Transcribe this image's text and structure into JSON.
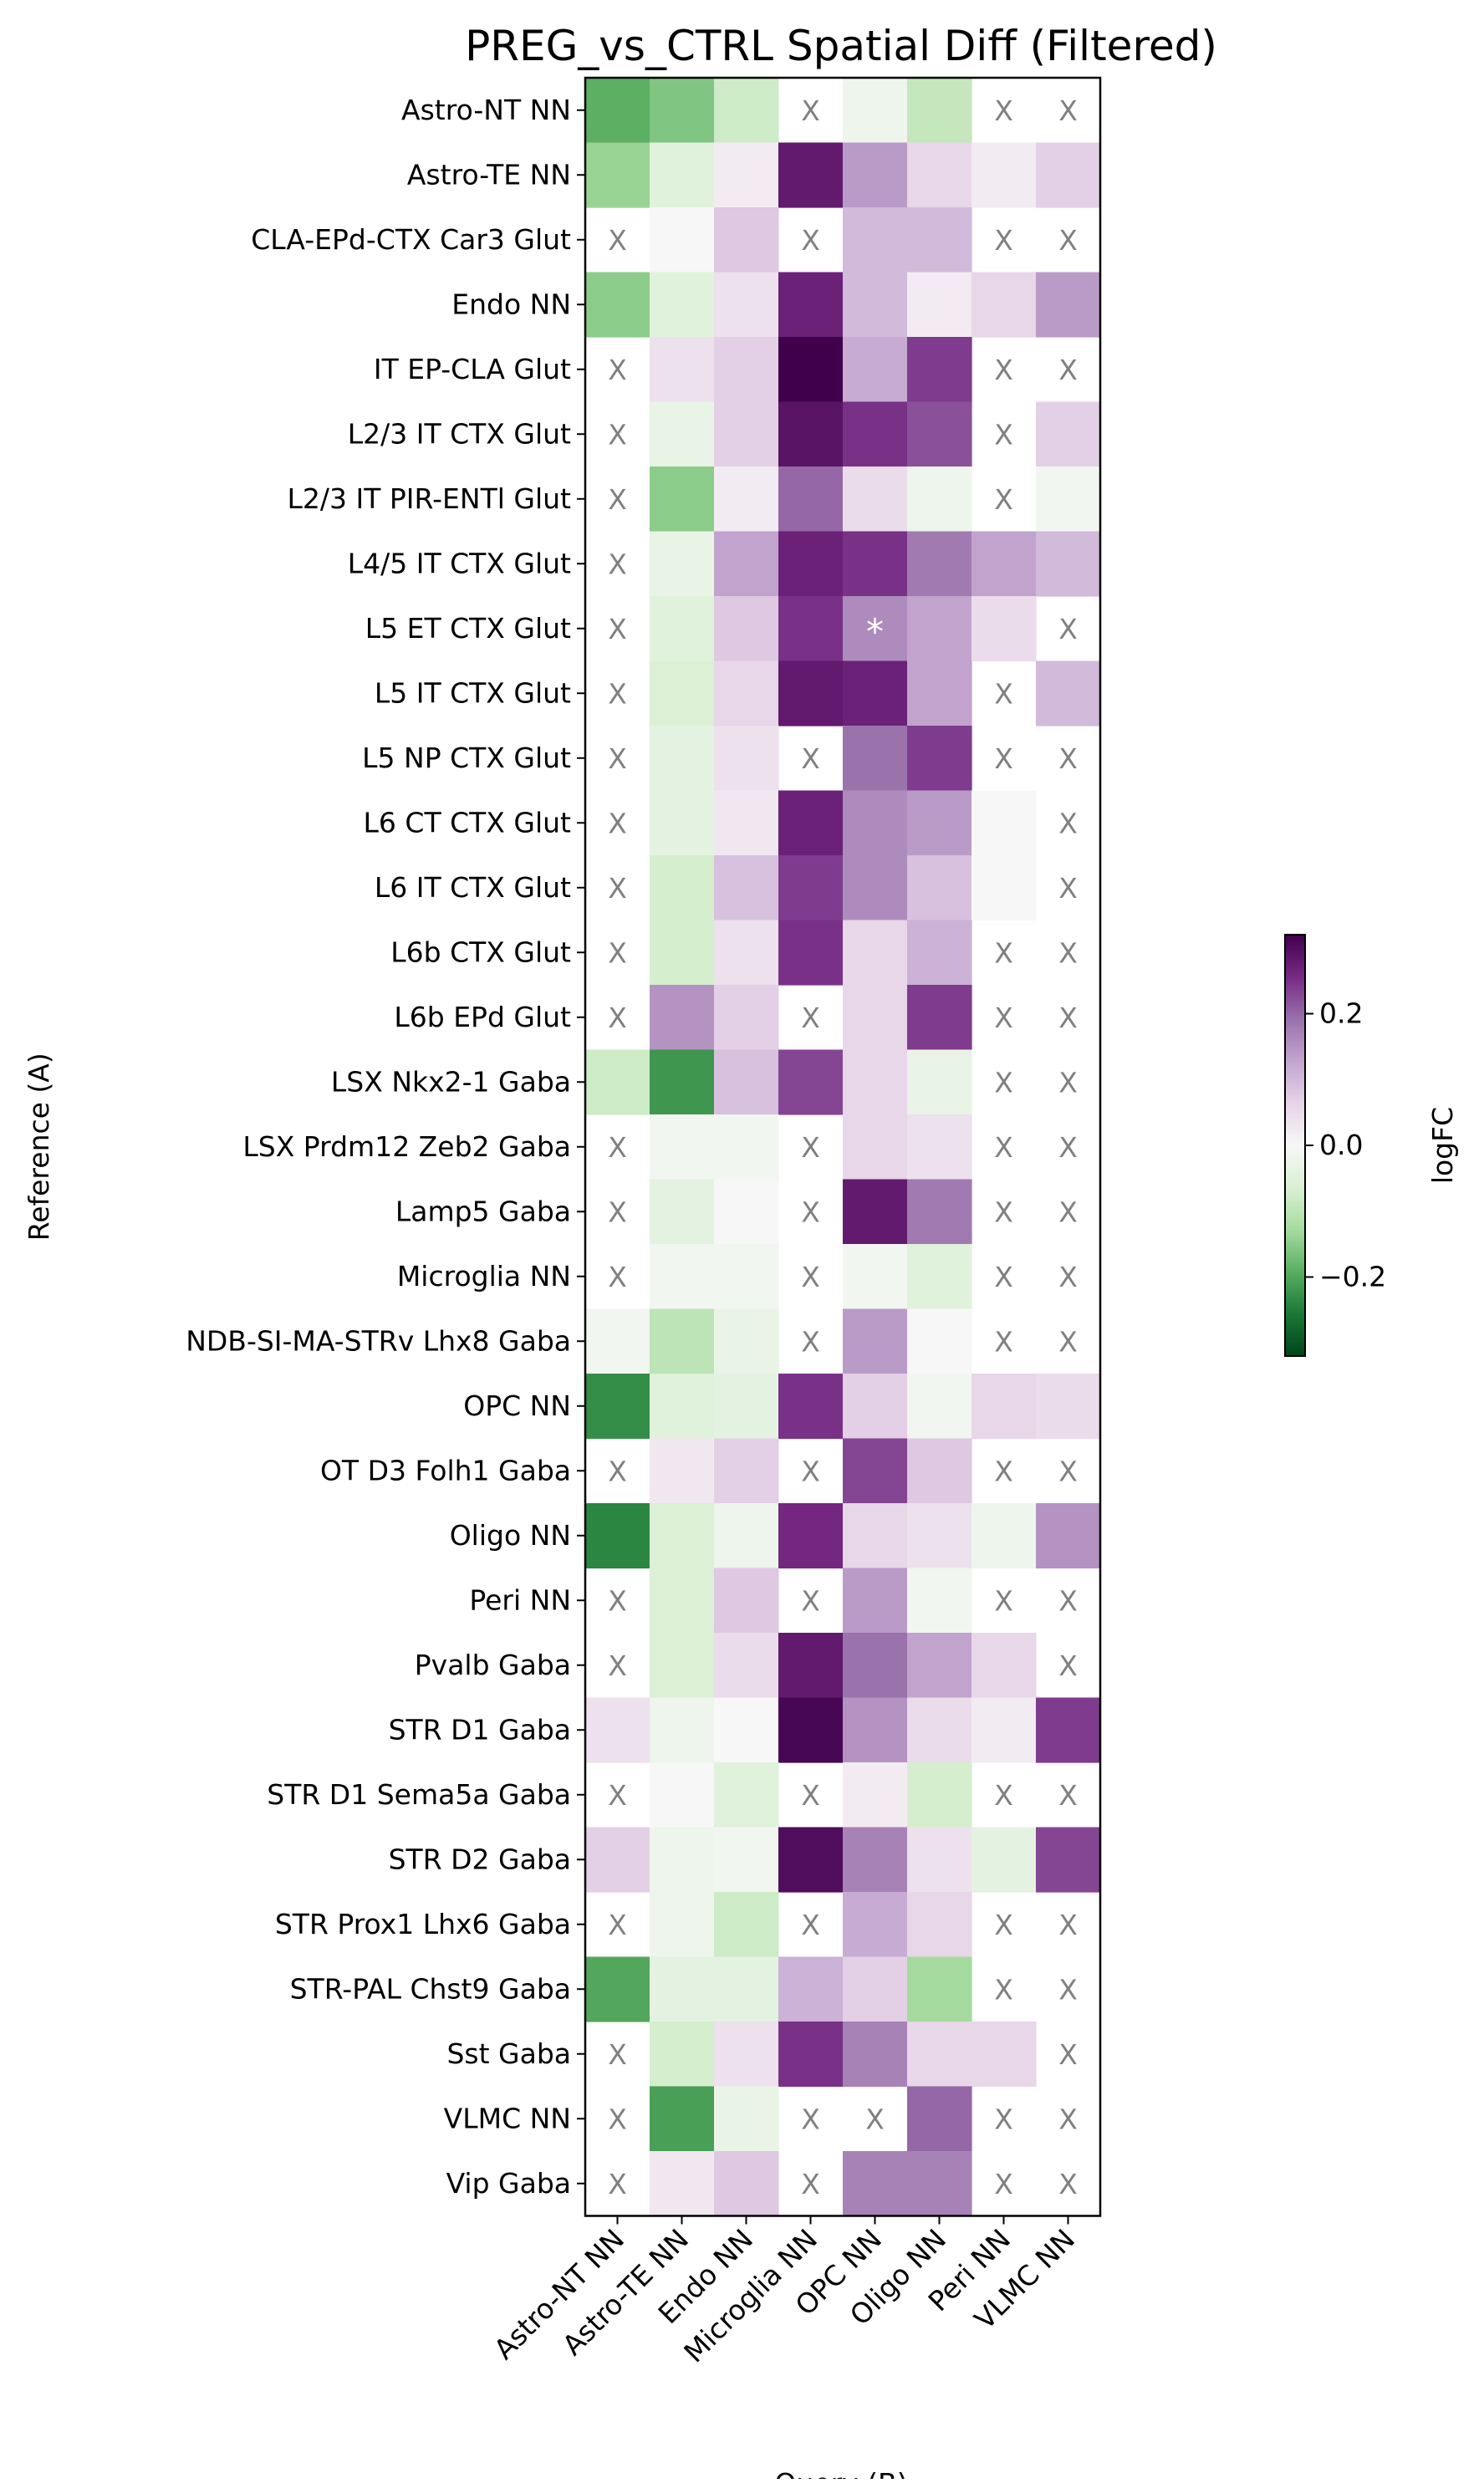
{
  "chart_data": {
    "type": "heatmap",
    "title": "PREG_vs_CTRL Spatial Diff (Filtered)",
    "xlabel": "Query (B)",
    "ylabel": "Reference (A)",
    "colorbar_label": "logFC",
    "colorbar_ticks": [
      0.2,
      0.0,
      -0.2
    ],
    "colorbar_tick_labels": [
      "0.2",
      "0.0",
      "−0.2"
    ],
    "vlim": [
      -0.32,
      0.32
    ],
    "colormap": "PRGn",
    "missing_marker": "X",
    "significance_marker": "*",
    "x_categories": [
      "Astro-NT NN",
      "Astro-TE NN",
      "Endo NN",
      "Microglia NN",
      "OPC NN",
      "Oligo NN",
      "Peri NN",
      "VLMC NN"
    ],
    "y_categories": [
      "Astro-NT NN",
      "Astro-TE NN",
      "CLA-EPd-CTX Car3 Glut",
      "Endo NN",
      "IT EP-CLA Glut",
      "L2/3 IT CTX Glut",
      "L2/3 IT PIR-ENTl Glut",
      "L4/5 IT CTX Glut",
      "L5 ET CTX Glut",
      "L5 IT CTX Glut",
      "L5 NP CTX Glut",
      "L6 CT CTX Glut",
      "L6 IT CTX Glut",
      "L6b CTX Glut",
      "L6b EPd Glut",
      "LSX Nkx2-1 Gaba",
      "LSX Prdm12 Zeb2 Gaba",
      "Lamp5 Gaba",
      "Microglia NN",
      "NDB-SI-MA-STRv Lhx8 Gaba",
      "OPC NN",
      "OT D3 Folh1 Gaba",
      "Oligo NN",
      "Peri NN",
      "Pvalb Gaba",
      "STR D1 Gaba",
      "STR D1 Sema5a Gaba",
      "STR D2 Gaba",
      "STR Prox1 Lhx6 Gaba",
      "STR-PAL Chst9 Gaba",
      "Sst Gaba",
      "VLMC NN",
      "Vip Gaba"
    ],
    "values": [
      [
        -0.19,
        -0.16,
        -0.08,
        null,
        -0.02,
        -0.09,
        null,
        null
      ],
      [
        -0.14,
        -0.05,
        0.02,
        0.28,
        0.14,
        0.06,
        0.02,
        0.07
      ],
      [
        null,
        0.0,
        0.08,
        null,
        0.1,
        0.1,
        null,
        null
      ],
      [
        -0.15,
        -0.05,
        0.04,
        0.27,
        0.1,
        0.02,
        0.06,
        0.14
      ],
      [
        null,
        0.04,
        0.07,
        0.32,
        0.12,
        0.24,
        null,
        null
      ],
      [
        null,
        -0.03,
        0.07,
        0.29,
        0.25,
        0.22,
        null,
        0.07
      ],
      [
        null,
        -0.15,
        0.02,
        0.2,
        0.05,
        -0.02,
        null,
        -0.01
      ],
      [
        null,
        -0.03,
        0.13,
        0.27,
        0.25,
        0.18,
        0.13,
        0.1
      ],
      [
        null,
        -0.05,
        0.08,
        0.25,
        0.16,
        0.13,
        0.05,
        null
      ],
      [
        null,
        -0.06,
        0.06,
        0.28,
        0.27,
        0.13,
        null,
        0.1
      ],
      [
        null,
        -0.04,
        0.04,
        null,
        0.19,
        0.24,
        null,
        null
      ],
      [
        null,
        -0.04,
        0.03,
        0.27,
        0.16,
        0.14,
        0.0,
        null
      ],
      [
        null,
        -0.07,
        0.09,
        0.24,
        0.16,
        0.09,
        0.0,
        null
      ],
      [
        null,
        -0.07,
        0.04,
        0.25,
        0.06,
        0.11,
        null,
        null
      ],
      [
        null,
        0.15,
        0.07,
        null,
        0.06,
        0.24,
        null,
        null
      ],
      [
        -0.08,
        -0.22,
        0.09,
        0.23,
        0.06,
        -0.03,
        null,
        null
      ],
      [
        null,
        -0.01,
        -0.01,
        null,
        0.06,
        0.04,
        null,
        null
      ],
      [
        null,
        -0.04,
        0.0,
        null,
        0.28,
        0.18,
        null,
        null
      ],
      [
        null,
        -0.01,
        -0.01,
        null,
        -0.01,
        -0.05,
        null,
        null
      ],
      [
        -0.01,
        -0.1,
        -0.03,
        null,
        0.14,
        0.0,
        null,
        null
      ],
      [
        -0.23,
        -0.05,
        -0.04,
        0.25,
        0.07,
        -0.01,
        0.06,
        0.05
      ],
      [
        null,
        0.03,
        0.07,
        null,
        0.23,
        0.08,
        null,
        null
      ],
      [
        -0.24,
        -0.06,
        -0.02,
        0.26,
        0.06,
        0.04,
        -0.02,
        0.15
      ],
      [
        null,
        -0.06,
        0.08,
        null,
        0.14,
        -0.01,
        null,
        null
      ],
      [
        null,
        -0.06,
        0.05,
        0.28,
        0.19,
        0.13,
        0.06,
        null
      ],
      [
        0.04,
        -0.02,
        0.0,
        0.31,
        0.15,
        0.05,
        0.02,
        0.24
      ],
      [
        null,
        0.0,
        -0.05,
        null,
        0.02,
        -0.07,
        null,
        null
      ],
      [
        0.07,
        -0.02,
        -0.01,
        0.3,
        0.17,
        0.04,
        -0.04,
        0.23
      ],
      [
        null,
        -0.02,
        -0.08,
        null,
        0.12,
        0.06,
        null,
        null
      ],
      [
        -0.2,
        -0.04,
        -0.04,
        0.11,
        0.07,
        -0.13,
        null,
        null
      ],
      [
        null,
        -0.07,
        0.04,
        0.25,
        0.17,
        0.06,
        0.06,
        null
      ],
      [
        null,
        -0.21,
        -0.03,
        null,
        null,
        0.2,
        null,
        null
      ],
      [
        null,
        0.03,
        0.08,
        null,
        0.17,
        0.17,
        null,
        null
      ]
    ],
    "significant_cells": [
      [
        8,
        4
      ]
    ]
  }
}
